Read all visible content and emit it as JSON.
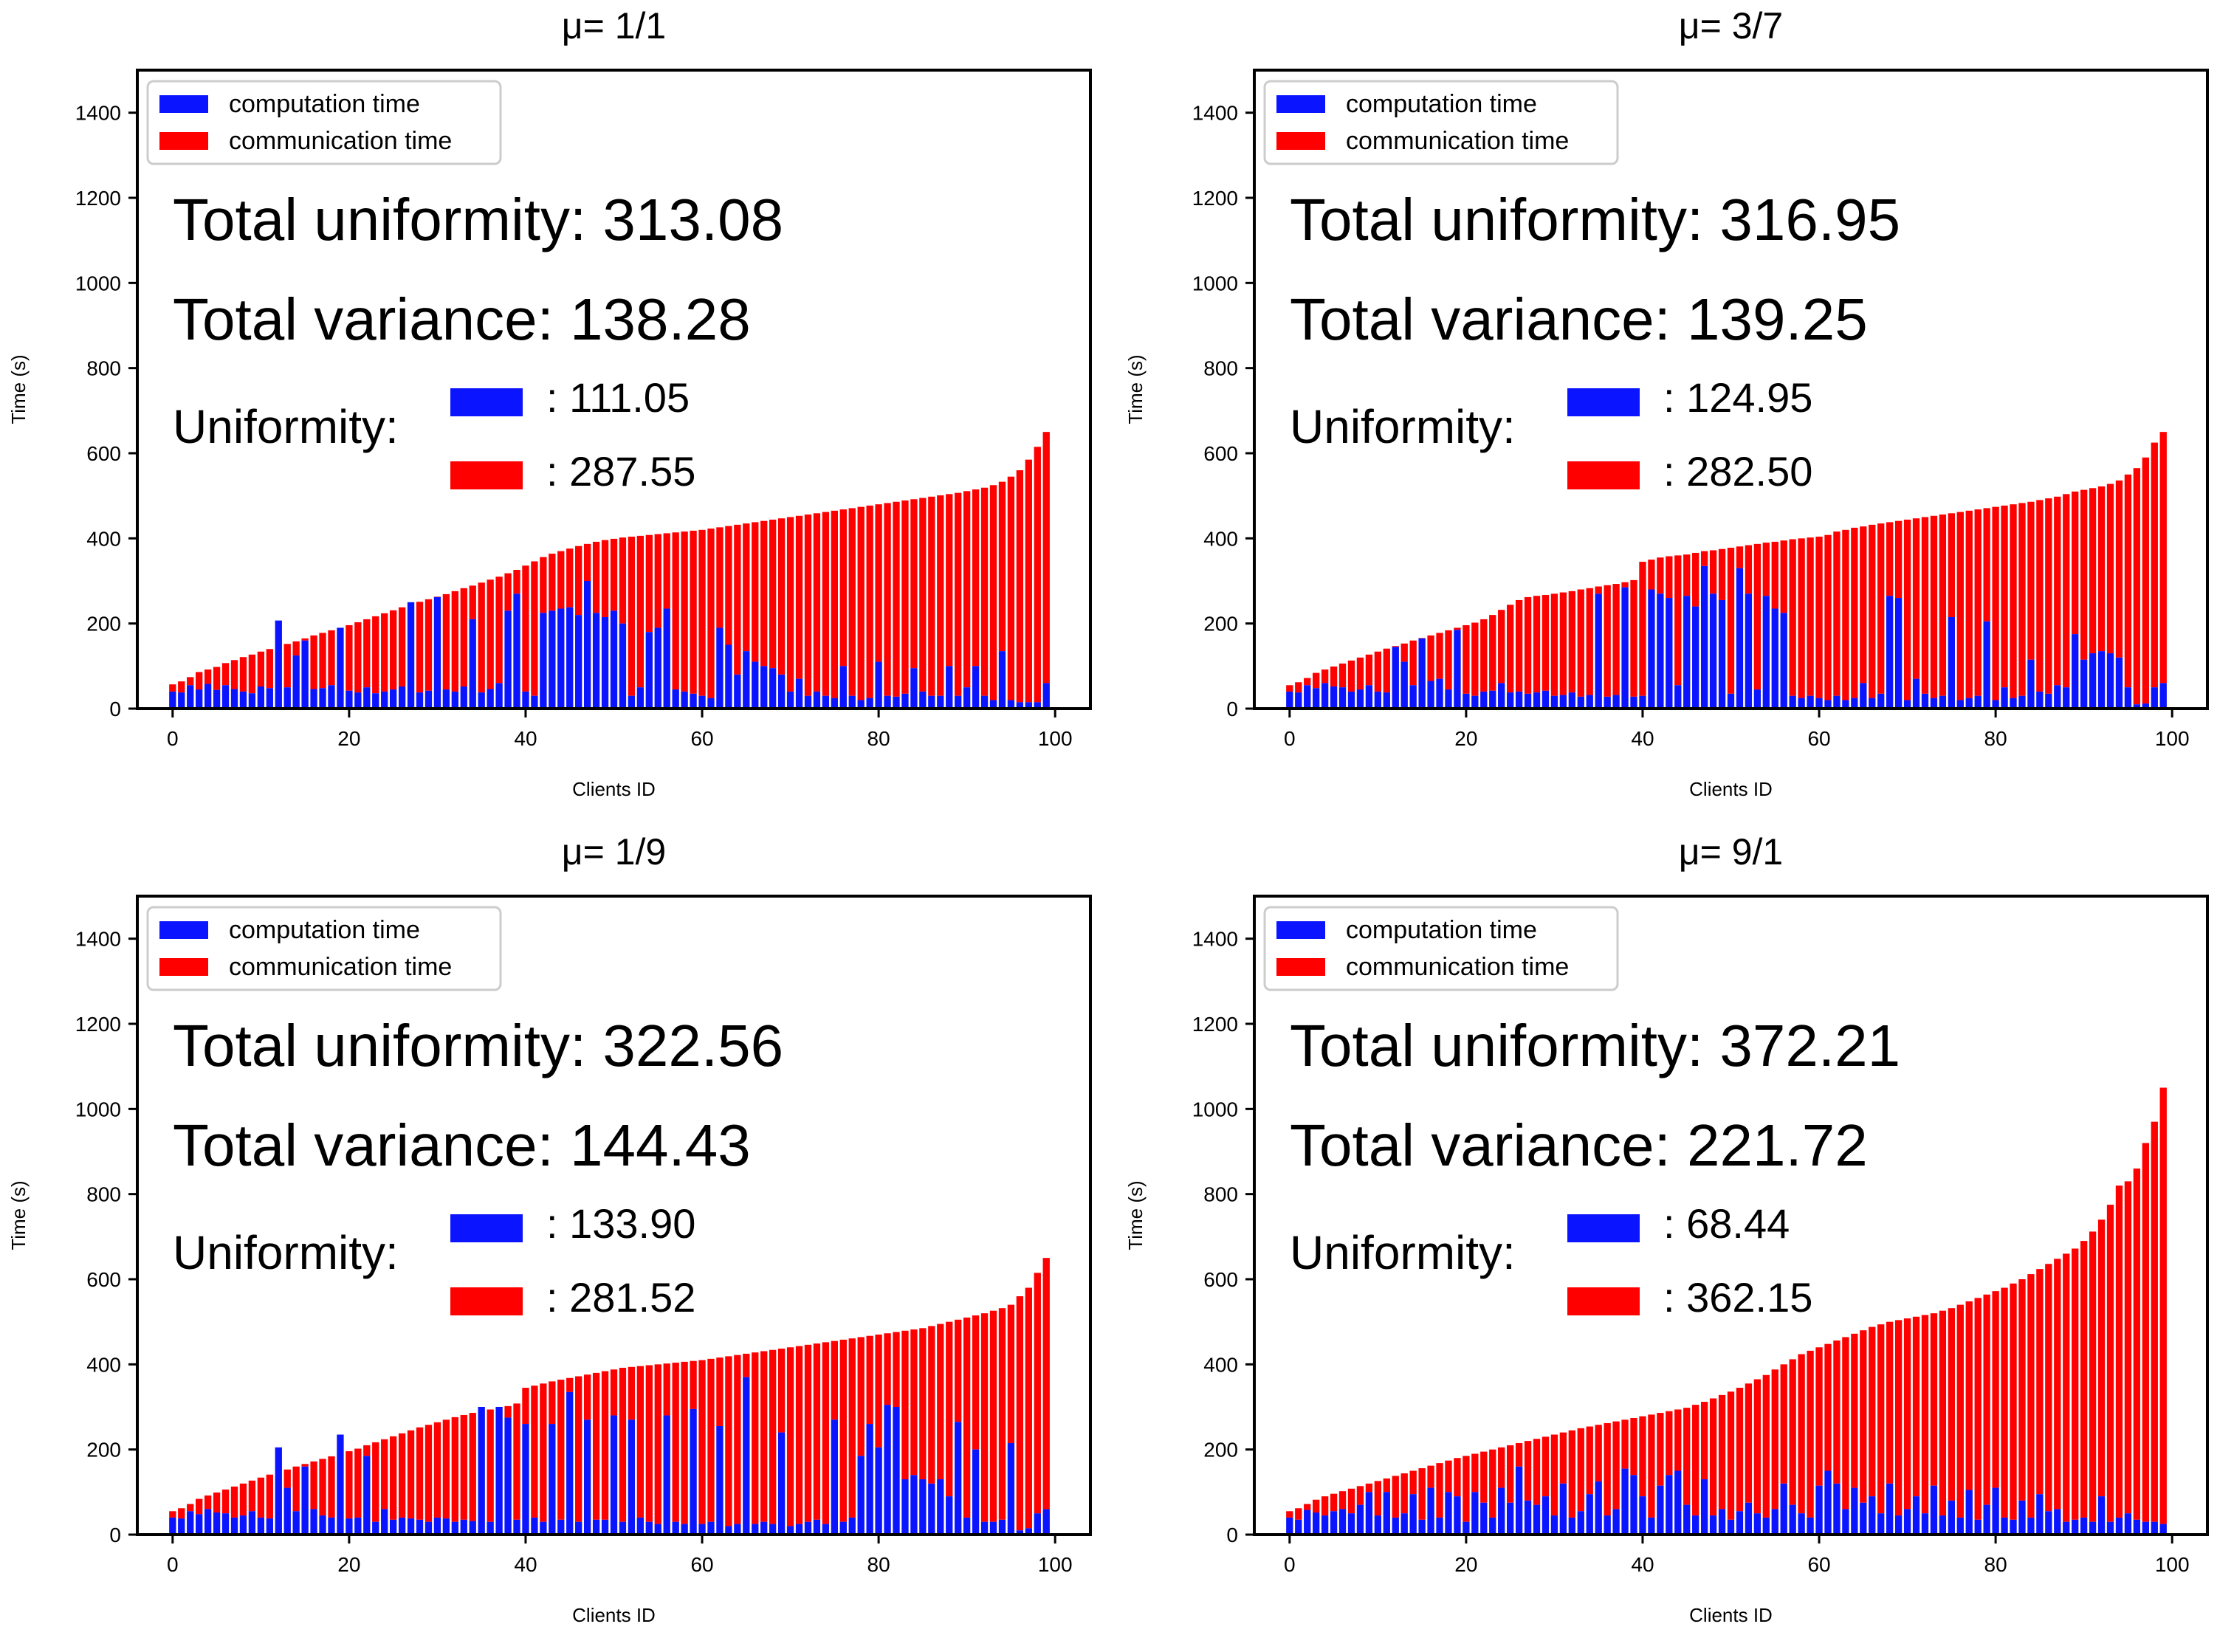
{
  "chart_data": [
    {
      "type": "bar",
      "stacked": true,
      "title": "μ= 1/1",
      "xlabel": "Clients ID",
      "ylabel": "Time (s)",
      "xlim": [
        -4,
        104
      ],
      "ylim": [
        0,
        1500
      ],
      "xticks": [
        0,
        20,
        40,
        60,
        80,
        100
      ],
      "yticks": [
        0,
        200,
        400,
        600,
        800,
        1000,
        1200,
        1400
      ],
      "legend": [
        "computation time",
        "communication time"
      ],
      "legend_position": "top-left",
      "total_uniformity_text": "Total uniformity: 313.08",
      "total_variance_text": "Total variance: 138.28",
      "uniformity_label": "Uniformity:",
      "uniformity_computation": ": 111.05",
      "uniformity_communication": ": 287.55",
      "totals": [
        57,
        64,
        74,
        86,
        92,
        98,
        107,
        114,
        121,
        127,
        134,
        140,
        146,
        152,
        158,
        165,
        172,
        178,
        184,
        190,
        196,
        203,
        210,
        217,
        224,
        231,
        238,
        245,
        251,
        257,
        263,
        269,
        276,
        283,
        289,
        296,
        303,
        310,
        318,
        326,
        336,
        346,
        356,
        364,
        370,
        376,
        382,
        387,
        392,
        396,
        399,
        402,
        404,
        406,
        408,
        410,
        412,
        414,
        416,
        418,
        420,
        423,
        426,
        429,
        432,
        435,
        438,
        441,
        444,
        447,
        450,
        453,
        456,
        459,
        462,
        465,
        468,
        471,
        474,
        477,
        480,
        483,
        486,
        489,
        492,
        495,
        498,
        501,
        504,
        507,
        511,
        515,
        519,
        525,
        533,
        545,
        560,
        585,
        615,
        650
      ],
      "computation": [
        40,
        38,
        55,
        45,
        58,
        44,
        55,
        46,
        40,
        36,
        52,
        48,
        207,
        50,
        125,
        160,
        46,
        48,
        55,
        190,
        42,
        38,
        50,
        36,
        40,
        45,
        52,
        250,
        38,
        42,
        262,
        45,
        40,
        52,
        210,
        38,
        46,
        60,
        230,
        270,
        40,
        30,
        225,
        230,
        235,
        238,
        220,
        300,
        225,
        215,
        230,
        200,
        30,
        50,
        180,
        190,
        235,
        45,
        40,
        35,
        30,
        25,
        190,
        150,
        80,
        135,
        110,
        100,
        95,
        80,
        40,
        70,
        30,
        40,
        30,
        25,
        100,
        30,
        20,
        25,
        110,
        30,
        28,
        35,
        95,
        40,
        30,
        30,
        100,
        30,
        50,
        100,
        30,
        20,
        135,
        20,
        15,
        15,
        15,
        60
      ]
    },
    {
      "type": "bar",
      "stacked": true,
      "title": "μ= 3/7",
      "xlabel": "Clients ID",
      "ylabel": "Time (s)",
      "xlim": [
        -4,
        104
      ],
      "ylim": [
        0,
        1500
      ],
      "xticks": [
        0,
        20,
        40,
        60,
        80,
        100
      ],
      "yticks": [
        0,
        200,
        400,
        600,
        800,
        1000,
        1200,
        1400
      ],
      "legend": [
        "computation time",
        "communication time"
      ],
      "legend_position": "top-left",
      "total_uniformity_text": "Total uniformity: 316.95",
      "total_variance_text": "Total variance: 139.25",
      "uniformity_label": "Uniformity:",
      "uniformity_computation": ": 124.95",
      "uniformity_communication": ": 282.50",
      "totals": [
        55,
        62,
        72,
        84,
        92,
        99,
        106,
        113,
        120,
        127,
        134,
        141,
        147,
        153,
        160,
        166,
        172,
        178,
        184,
        190,
        196,
        202,
        210,
        220,
        232,
        244,
        255,
        262,
        265,
        267,
        270,
        273,
        276,
        280,
        283,
        287,
        290,
        293,
        297,
        302,
        345,
        350,
        355,
        358,
        360,
        362,
        366,
        370,
        372,
        375,
        378,
        381,
        384,
        387,
        390,
        392,
        395,
        398,
        400,
        402,
        404,
        408,
        416,
        420,
        425,
        428,
        432,
        435,
        438,
        441,
        444,
        447,
        450,
        453,
        456,
        459,
        462,
        465,
        468,
        471,
        474,
        477,
        480,
        483,
        486,
        490,
        494,
        498,
        504,
        510,
        514,
        518,
        522,
        528,
        536,
        550,
        565,
        590,
        625,
        650
      ],
      "computation": [
        40,
        38,
        55,
        48,
        60,
        52,
        50,
        40,
        45,
        55,
        40,
        38,
        145,
        110,
        55,
        165,
        65,
        70,
        45,
        185,
        35,
        30,
        40,
        42,
        60,
        38,
        40,
        35,
        38,
        42,
        30,
        32,
        38,
        28,
        32,
        270,
        28,
        32,
        285,
        28,
        30,
        280,
        270,
        260,
        55,
        265,
        240,
        335,
        270,
        255,
        35,
        330,
        270,
        45,
        265,
        235,
        225,
        30,
        25,
        30,
        25,
        20,
        30,
        20,
        25,
        60,
        25,
        35,
        265,
        260,
        20,
        70,
        35,
        25,
        30,
        215,
        20,
        25,
        30,
        205,
        20,
        50,
        25,
        30,
        115,
        40,
        35,
        55,
        50,
        175,
        115,
        130,
        135,
        130,
        120,
        50,
        10,
        12,
        50,
        60
      ]
    },
    {
      "type": "bar",
      "stacked": true,
      "title": "μ= 1/9",
      "xlabel": "Clients ID",
      "ylabel": "Time (s)",
      "xlim": [
        -4,
        104
      ],
      "ylim": [
        0,
        1500
      ],
      "xticks": [
        0,
        20,
        40,
        60,
        80,
        100
      ],
      "yticks": [
        0,
        200,
        400,
        600,
        800,
        1000,
        1200,
        1400
      ],
      "legend": [
        "computation time",
        "communication time"
      ],
      "legend_position": "top-left",
      "total_uniformity_text": "Total uniformity: 322.56",
      "total_variance_text": "Total variance: 144.43",
      "uniformity_label": "Uniformity:",
      "uniformity_computation": ": 133.90",
      "uniformity_communication": ": 281.52",
      "totals": [
        55,
        62,
        72,
        84,
        92,
        99,
        106,
        113,
        120,
        127,
        134,
        141,
        147,
        153,
        160,
        166,
        172,
        178,
        184,
        190,
        196,
        202,
        210,
        217,
        224,
        231,
        238,
        245,
        252,
        258,
        264,
        270,
        276,
        281,
        286,
        290,
        294,
        298,
        302,
        308,
        345,
        350,
        355,
        360,
        364,
        368,
        372,
        376,
        380,
        384,
        388,
        392,
        394,
        396,
        398,
        400,
        402,
        404,
        406,
        408,
        410,
        413,
        416,
        419,
        422,
        425,
        428,
        431,
        434,
        437,
        440,
        443,
        446,
        449,
        452,
        455,
        458,
        461,
        464,
        467,
        470,
        473,
        476,
        479,
        482,
        485,
        490,
        495,
        500,
        505,
        510,
        515,
        520,
        526,
        532,
        540,
        560,
        580,
        615,
        650
      ],
      "computation": [
        40,
        38,
        55,
        48,
        60,
        52,
        50,
        40,
        45,
        55,
        40,
        38,
        205,
        110,
        55,
        160,
        60,
        45,
        40,
        235,
        38,
        40,
        185,
        30,
        60,
        35,
        40,
        38,
        35,
        30,
        40,
        38,
        30,
        35,
        32,
        300,
        30,
        300,
        275,
        35,
        260,
        40,
        30,
        260,
        35,
        335,
        30,
        270,
        35,
        35,
        280,
        30,
        270,
        40,
        30,
        25,
        280,
        30,
        25,
        295,
        25,
        30,
        255,
        20,
        25,
        370,
        25,
        30,
        25,
        240,
        20,
        25,
        30,
        35,
        25,
        270,
        30,
        40,
        185,
        260,
        205,
        305,
        300,
        130,
        140,
        130,
        120,
        130,
        90,
        265,
        40,
        200,
        30,
        30,
        35,
        215,
        10,
        15,
        50,
        60
      ]
    },
    {
      "type": "bar",
      "stacked": true,
      "title": "μ= 9/1",
      "xlabel": "Clients ID",
      "ylabel": "Time (s)",
      "xlim": [
        -4,
        104
      ],
      "ylim": [
        0,
        1500
      ],
      "xticks": [
        0,
        20,
        40,
        60,
        80,
        100
      ],
      "yticks": [
        0,
        200,
        400,
        600,
        800,
        1000,
        1200,
        1400
      ],
      "legend": [
        "computation time",
        "communication time"
      ],
      "legend_position": "top-left",
      "total_uniformity_text": "Total uniformity: 372.21",
      "total_variance_text": "Total variance: 221.72",
      "uniformity_label": "Uniformity:",
      "uniformity_computation": ": 68.44",
      "uniformity_communication": ": 362.15",
      "totals": [
        55,
        62,
        72,
        82,
        90,
        96,
        102,
        108,
        114,
        120,
        126,
        132,
        138,
        144,
        150,
        156,
        162,
        168,
        174,
        180,
        185,
        190,
        195,
        200,
        205,
        210,
        215,
        220,
        225,
        230,
        235,
        240,
        245,
        250,
        254,
        258,
        262,
        266,
        270,
        274,
        278,
        282,
        286,
        290,
        294,
        298,
        305,
        312,
        320,
        328,
        336,
        345,
        355,
        365,
        375,
        388,
        400,
        412,
        424,
        432,
        440,
        448,
        456,
        464,
        472,
        480,
        488,
        494,
        500,
        504,
        508,
        512,
        516,
        520,
        526,
        532,
        540,
        548,
        556,
        564,
        572,
        580,
        590,
        600,
        612,
        624,
        636,
        648,
        660,
        672,
        690,
        712,
        740,
        775,
        820,
        830,
        860,
        920,
        970,
        1050
      ],
      "computation": [
        40,
        35,
        58,
        52,
        45,
        55,
        60,
        50,
        70,
        100,
        45,
        100,
        40,
        50,
        95,
        35,
        110,
        40,
        100,
        90,
        30,
        100,
        75,
        40,
        110,
        75,
        160,
        80,
        70,
        90,
        45,
        120,
        40,
        55,
        95,
        125,
        45,
        60,
        155,
        140,
        90,
        40,
        115,
        140,
        150,
        70,
        45,
        130,
        45,
        60,
        35,
        55,
        75,
        50,
        40,
        60,
        120,
        70,
        50,
        40,
        115,
        150,
        120,
        60,
        110,
        75,
        90,
        50,
        120,
        45,
        60,
        90,
        50,
        115,
        45,
        80,
        40,
        105,
        35,
        70,
        110,
        40,
        35,
        80,
        40,
        95,
        55,
        60,
        30,
        35,
        40,
        30,
        90,
        30,
        40,
        50,
        35,
        30,
        30,
        25
      ]
    }
  ]
}
